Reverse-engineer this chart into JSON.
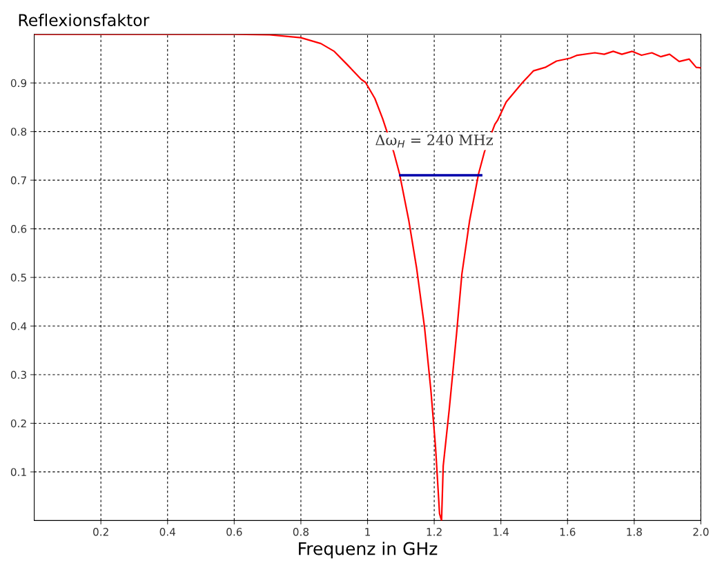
{
  "chart_data": {
    "type": "line",
    "xlabel": "Frequenz in GHz",
    "ylabel": "Reflexionsfaktor",
    "series": [
      {
        "color": "#ff0000",
        "x": [
          0,
          0.2,
          0.4,
          0.6,
          0.706,
          0.8,
          0.86,
          0.9,
          0.94,
          0.98,
          0.994,
          1.022,
          1.045,
          1.078,
          1.096,
          1.124,
          1.147,
          1.171,
          1.19,
          1.204,
          1.216,
          1.222,
          1.227,
          1.245,
          1.267,
          1.283,
          1.306,
          1.333,
          1.351,
          1.382,
          1.39,
          1.416,
          1.465,
          1.498,
          1.533,
          1.567,
          1.608,
          1.629,
          1.682,
          1.71,
          1.737,
          1.763,
          1.794,
          1.822,
          1.853,
          1.88,
          1.906,
          1.935,
          1.965,
          1.986,
          2.0
        ],
        "values": [
          1.0,
          1.0,
          1.0,
          1.0,
          0.999,
          0.993,
          0.981,
          0.965,
          0.937,
          0.908,
          0.901,
          0.868,
          0.827,
          0.759,
          0.713,
          0.616,
          0.52,
          0.397,
          0.268,
          0.151,
          0.014,
          0.0,
          0.112,
          0.228,
          0.384,
          0.507,
          0.616,
          0.713,
          0.759,
          0.815,
          0.823,
          0.861,
          0.901,
          0.925,
          0.932,
          0.945,
          0.951,
          0.957,
          0.962,
          0.959,
          0.965,
          0.959,
          0.965,
          0.957,
          0.962,
          0.954,
          0.959,
          0.944,
          0.949,
          0.932,
          0.931
        ]
      },
      {
        "color": "#0000aa",
        "x": [
          1.098,
          1.341
        ],
        "values": [
          0.71,
          0.71
        ]
      }
    ],
    "xlim": [
      0,
      2.0
    ],
    "ylim": [
      0,
      1.0
    ],
    "xticks": [
      0.2,
      0.4,
      0.6,
      0.8,
      1,
      1.2,
      1.4,
      1.6,
      1.8,
      {
        "value": 2.0,
        "label": "2.0"
      }
    ],
    "yticks": [
      0.1,
      0.2,
      0.3,
      0.4,
      0.5,
      0.6,
      0.7,
      0.8,
      0.9
    ],
    "grid": true,
    "line_style": "solid",
    "annotations": [
      "Δω$_{H}$ = 240 MHz"
    ]
  }
}
